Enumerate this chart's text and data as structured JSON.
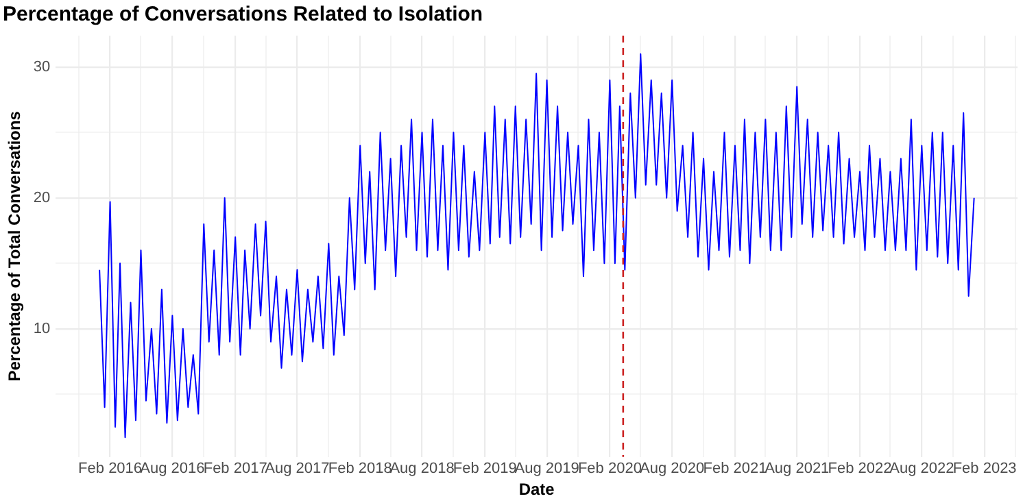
{
  "chart_data": {
    "type": "line",
    "title": "Percentage of Conversations Related to Isolation",
    "xlabel": "Date",
    "ylabel": "Percentage of Total Conversations",
    "x": [
      "2016-01-01",
      "2016-01-16",
      "2016-02-01",
      "2016-02-16",
      "2016-03-01",
      "2016-03-16",
      "2016-04-01",
      "2016-04-16",
      "2016-05-01",
      "2016-05-16",
      "2016-06-01",
      "2016-06-16",
      "2016-07-01",
      "2016-07-16",
      "2016-08-01",
      "2016-08-16",
      "2016-09-01",
      "2016-09-16",
      "2016-10-01",
      "2016-10-16",
      "2016-11-01",
      "2016-11-16",
      "2016-12-01",
      "2016-12-16",
      "2017-01-01",
      "2017-01-16",
      "2017-02-01",
      "2017-02-16",
      "2017-03-01",
      "2017-03-16",
      "2017-04-01",
      "2017-04-16",
      "2017-05-01",
      "2017-05-16",
      "2017-06-01",
      "2017-06-16",
      "2017-07-01",
      "2017-07-16",
      "2017-08-01",
      "2017-08-16",
      "2017-09-01",
      "2017-09-16",
      "2017-10-01",
      "2017-10-16",
      "2017-11-01",
      "2017-11-16",
      "2017-12-01",
      "2017-12-16",
      "2018-01-01",
      "2018-01-16",
      "2018-02-01",
      "2018-02-16",
      "2018-03-01",
      "2018-03-16",
      "2018-04-01",
      "2018-04-16",
      "2018-05-01",
      "2018-05-16",
      "2018-06-01",
      "2018-06-16",
      "2018-07-01",
      "2018-07-16",
      "2018-08-01",
      "2018-08-16",
      "2018-09-01",
      "2018-09-16",
      "2018-10-01",
      "2018-10-16",
      "2018-11-01",
      "2018-11-16",
      "2018-12-01",
      "2018-12-16",
      "2019-01-01",
      "2019-01-16",
      "2019-02-01",
      "2019-02-16",
      "2019-03-01",
      "2019-03-16",
      "2019-04-01",
      "2019-04-16",
      "2019-05-01",
      "2019-05-16",
      "2019-06-01",
      "2019-06-16",
      "2019-07-01",
      "2019-07-16",
      "2019-08-01",
      "2019-08-16",
      "2019-09-01",
      "2019-09-16",
      "2019-10-01",
      "2019-10-16",
      "2019-11-01",
      "2019-11-16",
      "2019-12-01",
      "2019-12-16",
      "2020-01-01",
      "2020-01-16",
      "2020-02-01",
      "2020-02-16",
      "2020-03-01",
      "2020-03-16",
      "2020-04-01",
      "2020-04-16",
      "2020-05-01",
      "2020-05-16",
      "2020-06-01",
      "2020-06-16",
      "2020-07-01",
      "2020-07-16",
      "2020-08-01",
      "2020-08-16",
      "2020-09-01",
      "2020-09-16",
      "2020-10-01",
      "2020-10-16",
      "2020-11-01",
      "2020-11-16",
      "2020-12-01",
      "2020-12-16",
      "2021-01-01",
      "2021-01-16",
      "2021-02-01",
      "2021-02-16",
      "2021-03-01",
      "2021-03-16",
      "2021-04-01",
      "2021-04-16",
      "2021-05-01",
      "2021-05-16",
      "2021-06-01",
      "2021-06-16",
      "2021-07-01",
      "2021-07-16",
      "2021-08-01",
      "2021-08-16",
      "2021-09-01",
      "2021-09-16",
      "2021-10-01",
      "2021-10-16",
      "2021-11-01",
      "2021-11-16",
      "2021-12-01",
      "2021-12-16",
      "2022-01-01",
      "2022-01-16",
      "2022-02-01",
      "2022-02-16",
      "2022-03-01",
      "2022-03-16",
      "2022-04-01",
      "2022-04-16",
      "2022-05-01",
      "2022-05-16",
      "2022-06-01",
      "2022-06-16",
      "2022-07-01",
      "2022-07-16",
      "2022-08-01",
      "2022-08-16",
      "2022-09-01",
      "2022-09-16",
      "2022-10-01",
      "2022-10-16",
      "2022-11-01",
      "2022-11-16",
      "2022-12-01",
      "2022-12-16",
      "2023-01-01"
    ],
    "values": [
      14.5,
      4,
      19.7,
      2.5,
      15,
      1.7,
      12,
      3,
      16,
      4.5,
      10,
      3.5,
      13,
      2.8,
      11,
      3,
      10,
      4,
      8,
      3.5,
      18,
      9,
      16,
      8,
      20,
      9,
      17,
      8,
      16,
      10,
      18,
      11,
      18.2,
      9,
      14,
      7,
      13,
      8,
      14.5,
      7.5,
      13,
      9,
      14,
      8.5,
      16.5,
      8,
      14,
      9.5,
      20,
      13,
      24,
      15,
      22,
      13,
      25,
      16,
      23,
      14,
      24,
      17,
      26,
      16,
      25,
      15.5,
      26,
      16,
      24,
      14.5,
      25,
      16,
      24,
      15.5,
      22,
      16,
      25,
      16.5,
      27,
      17,
      26,
      16.5,
      27,
      17,
      26,
      18,
      29.5,
      16,
      29,
      17,
      27,
      17.5,
      25,
      18,
      24,
      14,
      26,
      16,
      25,
      15,
      29,
      15,
      27,
      14.5,
      28,
      20,
      31,
      21,
      29,
      21,
      28,
      20,
      29,
      19,
      24,
      17,
      25,
      15.5,
      23,
      14.5,
      22,
      16,
      25,
      15.5,
      24,
      16,
      26,
      15,
      25,
      17,
      26,
      16,
      25,
      16,
      27,
      17,
      28.5,
      18,
      26,
      17,
      25,
      17.5,
      24,
      17,
      25,
      16.5,
      23,
      17,
      22,
      16,
      24,
      17,
      23,
      16,
      22,
      16,
      23,
      16,
      26,
      14.5,
      24,
      16,
      25,
      15.5,
      25,
      15,
      24,
      14.5,
      26.5,
      12.5,
      20
    ],
    "color": "#0000ff",
    "marker": "none",
    "line_style": "solid",
    "grid": true,
    "legend": false,
    "xlim": [
      "2015-08-26",
      "2023-05-08"
    ],
    "xticks": [
      {
        "value": "2015-11",
        "label": null
      },
      {
        "value": "2016-02",
        "label": "Feb 2016"
      },
      {
        "value": "2016-05",
        "label": null
      },
      {
        "value": "2016-08",
        "label": "Aug 2016"
      },
      {
        "value": "2016-11",
        "label": null
      },
      {
        "value": "2017-02",
        "label": "Feb 2017"
      },
      {
        "value": "2017-05",
        "label": null
      },
      {
        "value": "2017-08",
        "label": "Aug 2017"
      },
      {
        "value": "2017-11",
        "label": null
      },
      {
        "value": "2018-02",
        "label": "Feb 2018"
      },
      {
        "value": "2018-05",
        "label": null
      },
      {
        "value": "2018-08",
        "label": "Aug 2018"
      },
      {
        "value": "2018-11",
        "label": null
      },
      {
        "value": "2019-02",
        "label": "Feb 2019"
      },
      {
        "value": "2019-05",
        "label": null
      },
      {
        "value": "2019-08",
        "label": "Aug 2019"
      },
      {
        "value": "2019-11",
        "label": null
      },
      {
        "value": "2020-02",
        "label": "Feb 2020"
      },
      {
        "value": "2020-05",
        "label": null
      },
      {
        "value": "2020-08",
        "label": "Aug 2020"
      },
      {
        "value": "2020-11",
        "label": null
      },
      {
        "value": "2021-02",
        "label": "Feb 2021"
      },
      {
        "value": "2021-05",
        "label": null
      },
      {
        "value": "2021-08",
        "label": "Aug 2021"
      },
      {
        "value": "2021-11",
        "label": null
      },
      {
        "value": "2022-02",
        "label": "Feb 2022"
      },
      {
        "value": "2022-05",
        "label": null
      },
      {
        "value": "2022-08",
        "label": "Aug 2022"
      },
      {
        "value": "2022-11",
        "label": null
      },
      {
        "value": "2023-02",
        "label": "Feb 2023"
      },
      {
        "value": "2023-05",
        "label": null
      }
    ],
    "ylim": [
      0.2,
      32.4
    ],
    "yticks": [
      {
        "value": 5,
        "label": null
      },
      10,
      {
        "value": 15,
        "label": null
      },
      20,
      {
        "value": 25,
        "label": null
      },
      30
    ],
    "ref_lines": [
      {
        "axis": "x",
        "value": "2020-03-11",
        "color": "#cc2222",
        "line_style": "dashed"
      }
    ]
  }
}
